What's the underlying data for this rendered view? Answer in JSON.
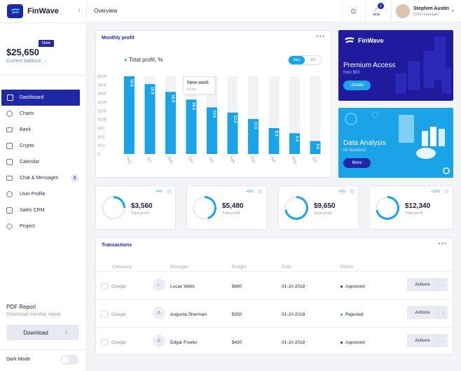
{
  "app": {
    "name": "FinWave",
    "collapse_icon": "chevron-left-icon"
  },
  "sidebar": {
    "balance": "$25,650",
    "balance_label": "Current balance →",
    "badge": "New",
    "items": [
      {
        "label": "Dashboard",
        "icon": "grid-icon",
        "active": true
      },
      {
        "label": "Charts",
        "icon": "pie-chart-icon"
      },
      {
        "label": "Bank",
        "icon": "credit-card-icon"
      },
      {
        "label": "Crypto",
        "icon": "cube-icon"
      },
      {
        "label": "Calendar",
        "icon": "calendar-icon"
      },
      {
        "label": "Chat & Messages",
        "icon": "mail-icon",
        "badge": "3"
      },
      {
        "label": "User Profile",
        "icon": "user-icon"
      },
      {
        "label": "Sales CRM",
        "icon": "cart-icon"
      },
      {
        "label": "Project",
        "icon": "layers-icon"
      }
    ],
    "pdf_title": "PDF Report",
    "pdf_sub": "Download monthly report",
    "download_label": "Download",
    "dark_mode": "Dark Mode"
  },
  "topbar": {
    "title": "Overview",
    "notif_count": "2",
    "user_name": "Stephen Austin",
    "user_role": "Chief manager"
  },
  "profit_card": {
    "title": "Monthly profit",
    "legend": "Total profit, %",
    "seg_max": "Max",
    "seg_min": "Min",
    "tooltip_title": "New work",
    "tooltip_sub": "5 Dec"
  },
  "chart_data": {
    "type": "bar",
    "categories": [
      "Sep",
      "Oct",
      "Nov",
      "Dec",
      "Jan",
      "Feb",
      "Mar",
      "Apr",
      "May",
      "Jun"
    ],
    "values": [
      15.9,
      15.8,
      16.9,
      16.9,
      13.9,
      12.4,
      11.5,
      8.9,
      6.4,
      5.6
    ],
    "bar_heights": [
      600,
      540,
      480,
      420,
      360,
      320,
      270,
      200,
      160,
      100
    ],
    "ylim": [
      0,
      600
    ],
    "yticks": [
      "$600",
      "$500",
      "$400",
      "$300",
      "$200",
      "$100",
      "$50",
      "$20",
      "$10",
      "0"
    ],
    "bar_color": "#1ba3e8",
    "bg_color": "#f1f2f6"
  },
  "promo": [
    {
      "logo": "FinWave",
      "title": "Premium Access",
      "sub": "from $50",
      "button": "Update",
      "color": "#1f1a9e"
    },
    {
      "title": "Data Analysis",
      "sub": "for business",
      "button": "More",
      "color": "#1ba3e8"
    }
  ],
  "stats": [
    {
      "value": "$3,560",
      "label": "Total profit",
      "change": "+4%",
      "progress": 0.25
    },
    {
      "value": "$5,480",
      "label": "Total profit",
      "change": "+6%",
      "progress": 0.45
    },
    {
      "value": "$9,650",
      "label": "Total profit",
      "change": "+9%",
      "progress": 0.72
    },
    {
      "value": "$12,340",
      "label": "Total profit",
      "change": "+12%",
      "progress": 0.72
    }
  ],
  "transactions": {
    "title": "Transactions",
    "headers": [
      "Company",
      "Manager",
      "Budget",
      "Date",
      "Status"
    ],
    "rows": [
      {
        "company": "Google",
        "initial": "L",
        "manager": "Lucas Wells",
        "budget": "$680",
        "date": "01-10-2018",
        "status": "Approved",
        "status_color": "#1f29a8",
        "action": "Actions"
      },
      {
        "company": "Google",
        "initial": "A",
        "manager": "Augusta Sherman",
        "budget": "$350",
        "date": "01-10-2018",
        "status": "Rejected",
        "status_color": "#1ba3e8",
        "action": "Actions"
      },
      {
        "company": "Google",
        "initial": "E",
        "manager": "Edgar Fowler",
        "budget": "$420",
        "date": "01-10-2018",
        "status": "Approved",
        "status_color": "#1f29a8",
        "action": "Actions"
      }
    ]
  }
}
